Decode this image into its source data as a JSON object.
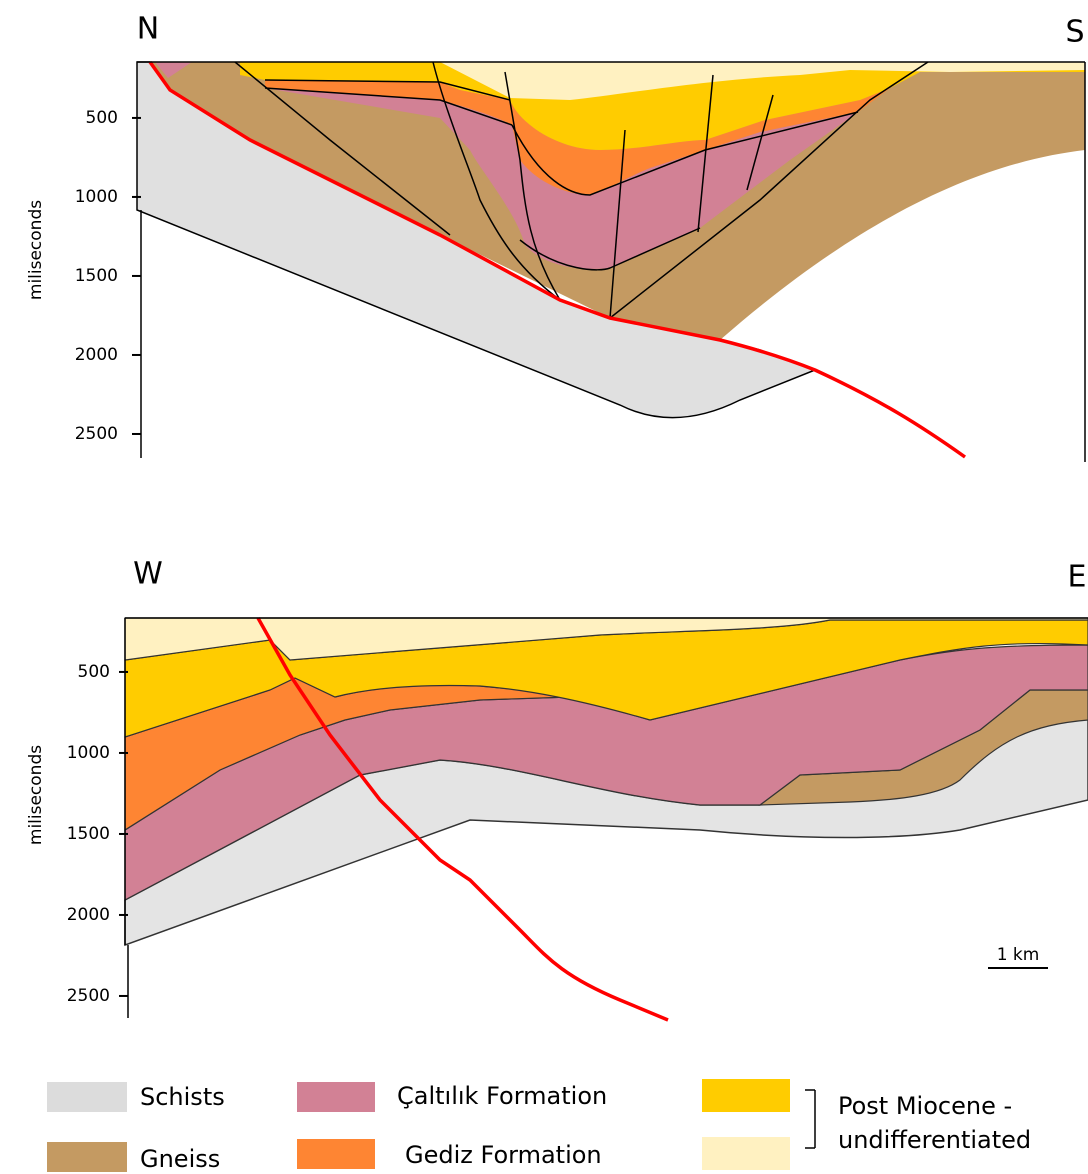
{
  "sections": [
    {
      "left_label": "N",
      "right_label": "S",
      "y_axis": {
        "label": "miliseconds",
        "ticks": [
          500,
          1000,
          1500,
          2000,
          2500
        ],
        "ylim": [
          146,
          2652
        ]
      }
    },
    {
      "left_label": "W",
      "right_label": "E",
      "y_axis": {
        "label": "miliseconds",
        "ticks": [
          500,
          1000,
          1500,
          2000,
          2500
        ],
        "ylim": [
          167,
          2636
        ]
      }
    }
  ],
  "scale_bar": "1 km",
  "legend": [
    {
      "label": "Schists",
      "color": "#dcdcdc"
    },
    {
      "label": "Gneiss",
      "color": "#c49a62"
    },
    {
      "label": "Çaltılık Formation",
      "color": "#d28195"
    },
    {
      "label": "Gediz Formation",
      "color": "#fe8533"
    },
    {
      "lines": [
        "Post Miocene -",
        "undifferentiated"
      ],
      "colors": [
        "#ffcc00",
        "#fff1c1"
      ]
    }
  ]
}
